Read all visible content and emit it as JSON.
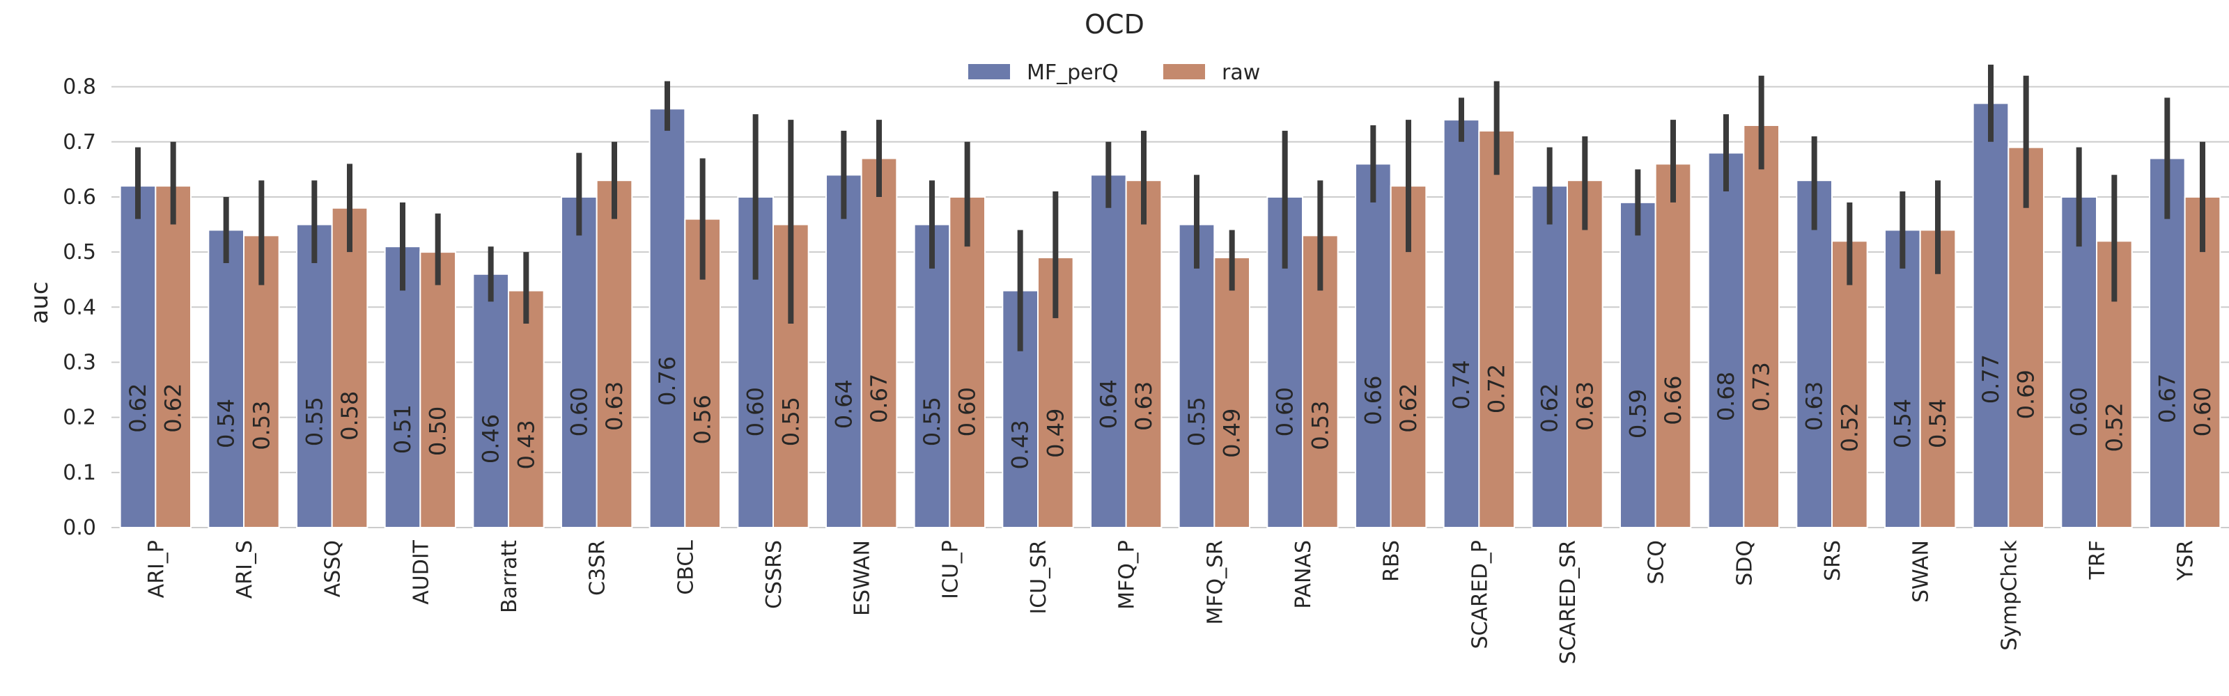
{
  "chart_data": {
    "type": "bar",
    "title": "OCD",
    "xlabel": "",
    "ylabel": "auc",
    "ylim": [
      0,
      0.85
    ],
    "yticks": [
      "0.0",
      "0.1",
      "0.2",
      "0.3",
      "0.4",
      "0.5",
      "0.6",
      "0.7",
      "0.8"
    ],
    "grid": true,
    "legend": "top-center",
    "categories": [
      "ARI_P",
      "ARI_S",
      "ASSQ",
      "AUDIT",
      "Barratt",
      "C3SR",
      "CBCL",
      "CSSRS",
      "ESWAN",
      "ICU_P",
      "ICU_SR",
      "MFQ_P",
      "MFQ_SR",
      "PANAS",
      "RBS",
      "SCARED_P",
      "SCARED_SR",
      "SCQ",
      "SDQ",
      "SRS",
      "SWAN",
      "SympChck",
      "TRF",
      "YSR"
    ],
    "series": [
      {
        "name": "MF_perQ",
        "color": "#6b7aab",
        "values": [
          0.62,
          0.54,
          0.55,
          0.51,
          0.46,
          0.6,
          0.76,
          0.6,
          0.64,
          0.55,
          0.43,
          0.64,
          0.55,
          0.6,
          0.66,
          0.74,
          0.62,
          0.59,
          0.68,
          0.63,
          0.54,
          0.77,
          0.6,
          0.67
        ],
        "labels": [
          "0.62",
          "0.54",
          "0.55",
          "0.51",
          "0.46",
          "0.60",
          "0.76",
          "0.60",
          "0.64",
          "0.55",
          "0.43",
          "0.64",
          "0.55",
          "0.60",
          "0.66",
          "0.74",
          "0.62",
          "0.59",
          "0.68",
          "0.63",
          "0.54",
          "0.77",
          "0.60",
          "0.67"
        ],
        "ci": [
          [
            0.56,
            0.69
          ],
          [
            0.48,
            0.6
          ],
          [
            0.48,
            0.63
          ],
          [
            0.43,
            0.59
          ],
          [
            0.41,
            0.51
          ],
          [
            0.53,
            0.68
          ],
          [
            0.72,
            0.81
          ],
          [
            0.45,
            0.75
          ],
          [
            0.56,
            0.72
          ],
          [
            0.47,
            0.63
          ],
          [
            0.32,
            0.54
          ],
          [
            0.58,
            0.7
          ],
          [
            0.47,
            0.64
          ],
          [
            0.47,
            0.72
          ],
          [
            0.59,
            0.73
          ],
          [
            0.7,
            0.78
          ],
          [
            0.55,
            0.69
          ],
          [
            0.53,
            0.65
          ],
          [
            0.61,
            0.75
          ],
          [
            0.54,
            0.71
          ],
          [
            0.47,
            0.61
          ],
          [
            0.7,
            0.84
          ],
          [
            0.51,
            0.69
          ],
          [
            0.56,
            0.78
          ]
        ]
      },
      {
        "name": "raw",
        "color": "#c4896d",
        "values": [
          0.62,
          0.53,
          0.58,
          0.5,
          0.43,
          0.63,
          0.56,
          0.55,
          0.67,
          0.6,
          0.49,
          0.63,
          0.49,
          0.53,
          0.62,
          0.72,
          0.63,
          0.66,
          0.73,
          0.52,
          0.54,
          0.69,
          0.52,
          0.6
        ],
        "labels": [
          "0.62",
          "0.53",
          "0.58",
          "0.50",
          "0.43",
          "0.63",
          "0.56",
          "0.55",
          "0.67",
          "0.60",
          "0.49",
          "0.63",
          "0.49",
          "0.53",
          "0.62",
          "0.72",
          "0.63",
          "0.66",
          "0.73",
          "0.52",
          "0.54",
          "0.69",
          "0.52",
          "0.60"
        ],
        "ci": [
          [
            0.55,
            0.7
          ],
          [
            0.44,
            0.63
          ],
          [
            0.5,
            0.66
          ],
          [
            0.44,
            0.57
          ],
          [
            0.37,
            0.5
          ],
          [
            0.56,
            0.7
          ],
          [
            0.45,
            0.67
          ],
          [
            0.37,
            0.74
          ],
          [
            0.6,
            0.74
          ],
          [
            0.51,
            0.7
          ],
          [
            0.38,
            0.61
          ],
          [
            0.55,
            0.72
          ],
          [
            0.43,
            0.54
          ],
          [
            0.43,
            0.63
          ],
          [
            0.5,
            0.74
          ],
          [
            0.64,
            0.81
          ],
          [
            0.54,
            0.71
          ],
          [
            0.59,
            0.74
          ],
          [
            0.65,
            0.82
          ],
          [
            0.44,
            0.59
          ],
          [
            0.46,
            0.63
          ],
          [
            0.58,
            0.82
          ],
          [
            0.41,
            0.64
          ],
          [
            0.5,
            0.7
          ]
        ]
      }
    ]
  }
}
